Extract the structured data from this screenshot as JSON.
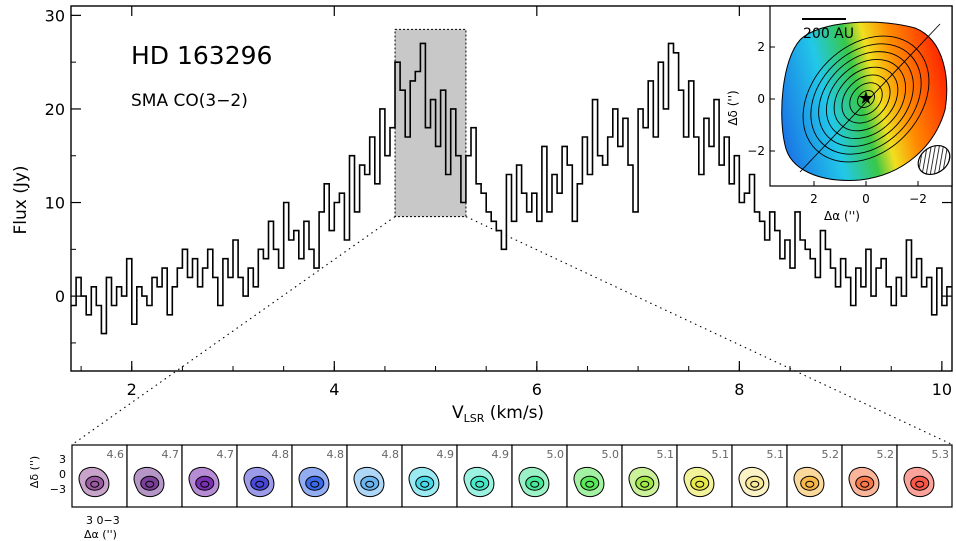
{
  "chart_data": [
    {
      "type": "line",
      "style": "step",
      "title": "HD 163296",
      "subtitle": "SMA CO(3−2)",
      "ylabel": "Flux (Jy)",
      "xlabel_main": "V",
      "xlabel_sub": "LSR",
      "xlabel_unit": " (km/s)",
      "xlim": [
        1.4,
        10.1
      ],
      "ylim": [
        -8,
        31
      ],
      "xticks": [
        2,
        4,
        6,
        8,
        10
      ],
      "xtick_labels": [
        "2",
        "4",
        "6",
        "8",
        "10"
      ],
      "yticks": [
        0,
        10,
        20,
        30
      ],
      "ytick_labels": [
        "0",
        "10",
        "20",
        "30"
      ],
      "highlight": {
        "x_range": [
          4.6,
          5.3
        ],
        "y_range": [
          8.5,
          28.5
        ]
      },
      "series": [
        {
          "x": [
            1.4,
            1.45,
            1.5,
            1.55,
            1.6,
            1.65,
            1.7,
            1.75,
            1.8,
            1.85,
            1.9,
            1.95,
            2.0,
            2.05,
            2.1,
            2.15,
            2.2,
            2.25,
            2.3,
            2.35,
            2.4,
            2.45,
            2.5,
            2.55,
            2.6,
            2.65,
            2.7,
            2.75,
            2.8,
            2.85,
            2.9,
            2.95,
            3.0,
            3.05,
            3.1,
            3.15,
            3.2,
            3.25,
            3.3,
            3.35,
            3.4,
            3.45,
            3.5,
            3.55,
            3.6,
            3.65,
            3.7,
            3.75,
            3.8,
            3.85,
            3.9,
            3.95,
            4.0,
            4.05,
            4.1,
            4.15,
            4.2,
            4.25,
            4.3,
            4.35,
            4.4,
            4.45,
            4.5,
            4.55,
            4.6,
            4.65,
            4.7,
            4.75,
            4.8,
            4.85,
            4.9,
            4.95,
            5.0,
            5.05,
            5.1,
            5.15,
            5.2,
            5.25,
            5.3,
            5.35,
            5.4,
            5.45,
            5.5,
            5.55,
            5.6,
            5.65,
            5.7,
            5.75,
            5.8,
            5.85,
            5.9,
            5.95,
            6.0,
            6.05,
            6.1,
            6.15,
            6.2,
            6.25,
            6.3,
            6.35,
            6.4,
            6.45,
            6.5,
            6.55,
            6.6,
            6.65,
            6.7,
            6.75,
            6.8,
            6.85,
            6.9,
            6.95,
            7.0,
            7.05,
            7.1,
            7.15,
            7.2,
            7.25,
            7.3,
            7.35,
            7.4,
            7.45,
            7.5,
            7.55,
            7.6,
            7.65,
            7.7,
            7.75,
            7.8,
            7.85,
            7.9,
            7.95,
            8.0,
            8.05,
            8.1,
            8.15,
            8.2,
            8.25,
            8.3,
            8.35,
            8.4,
            8.45,
            8.5,
            8.55,
            8.6,
            8.65,
            8.7,
            8.75,
            8.8,
            8.85,
            8.9,
            8.95,
            9.0,
            9.05,
            9.1,
            9.15,
            9.2,
            9.25,
            9.3,
            9.35,
            9.4,
            9.45,
            9.5,
            9.55,
            9.6,
            9.65,
            9.7,
            9.75,
            9.8,
            9.85,
            9.9,
            9.95,
            10.0,
            10.05
          ],
          "y": [
            -1,
            2,
            0,
            -2,
            1,
            -1,
            -4,
            2,
            -1,
            1,
            0,
            4,
            -3,
            1,
            0,
            -1,
            2,
            1,
            3,
            -2,
            1,
            3,
            5,
            2,
            4,
            1,
            3,
            5,
            2,
            -1,
            4,
            2,
            6,
            2,
            0,
            3,
            1,
            5,
            4,
            8,
            5,
            3,
            10,
            6,
            7,
            4,
            8,
            5,
            3,
            9,
            12,
            7,
            10,
            11,
            6,
            15,
            9,
            14,
            13,
            17,
            12,
            20,
            15,
            18,
            25,
            22,
            17,
            23,
            24,
            27,
            18,
            21,
            16,
            22,
            13,
            20,
            15,
            10,
            15,
            18,
            12,
            11,
            9,
            8,
            7,
            5,
            13,
            8,
            14,
            11,
            9,
            11,
            8,
            16,
            9,
            13,
            11,
            16,
            14,
            8,
            12,
            17,
            13,
            21,
            15,
            14,
            17,
            20,
            16,
            19,
            14,
            9,
            20,
            18,
            23,
            17,
            25,
            20,
            27,
            26,
            22,
            17,
            23,
            17,
            13,
            19,
            16,
            21,
            14,
            17,
            12,
            15,
            10,
            11,
            13,
            9,
            8,
            6,
            9,
            7,
            4,
            6,
            3,
            9,
            6,
            5,
            4,
            2,
            7,
            5,
            3,
            1,
            4,
            2,
            -1,
            3,
            1,
            5,
            0,
            3,
            4,
            1,
            -1,
            2,
            0,
            6,
            2,
            4,
            1,
            2,
            -2,
            3,
            -1,
            1
          ]
        }
      ]
    },
    {
      "type": "heatmap",
      "panel": "inset-map",
      "scalebar_label": "200 AU",
      "xlabel": "Δα ('')",
      "ylabel": "Δδ ('')",
      "xticks": [
        2,
        0,
        -2
      ],
      "xtick_labels": [
        "2",
        "0",
        "−2"
      ],
      "yticks": [
        2,
        0,
        -2
      ],
      "ytick_labels": [
        "2",
        "0",
        "−2"
      ],
      "colors": {
        "blue": "#1a6ee6",
        "cyan": "#22c8e8",
        "green": "#38c84a",
        "yellow": "#f0e020",
        "orange": "#ff8a00",
        "red": "#ff1a00"
      }
    },
    {
      "type": "heatmap",
      "panel": "channel-maps",
      "xlabel": "Δα ('')",
      "ylabel": "Δδ ('')",
      "xtick_labels": "3 0−3",
      "ytick_labels": [
        "3",
        "0",
        "−3"
      ],
      "channels": [
        "4.6",
        "4.7",
        "4.7",
        "4.8",
        "4.8",
        "4.8",
        "4.9",
        "4.9",
        "5.0",
        "5.0",
        "5.1",
        "5.1",
        "5.1",
        "5.2",
        "5.2",
        "5.3"
      ],
      "colors": [
        "#9a5aa0",
        "#7a3f98",
        "#7a30b0",
        "#4848d8",
        "#3a6ae8",
        "#6ab4f0",
        "#48d8e8",
        "#48e8c8",
        "#48e898",
        "#58e858",
        "#a0e848",
        "#e8e848",
        "#f8e898",
        "#f8b848",
        "#f87848",
        "#f85848"
      ]
    }
  ]
}
